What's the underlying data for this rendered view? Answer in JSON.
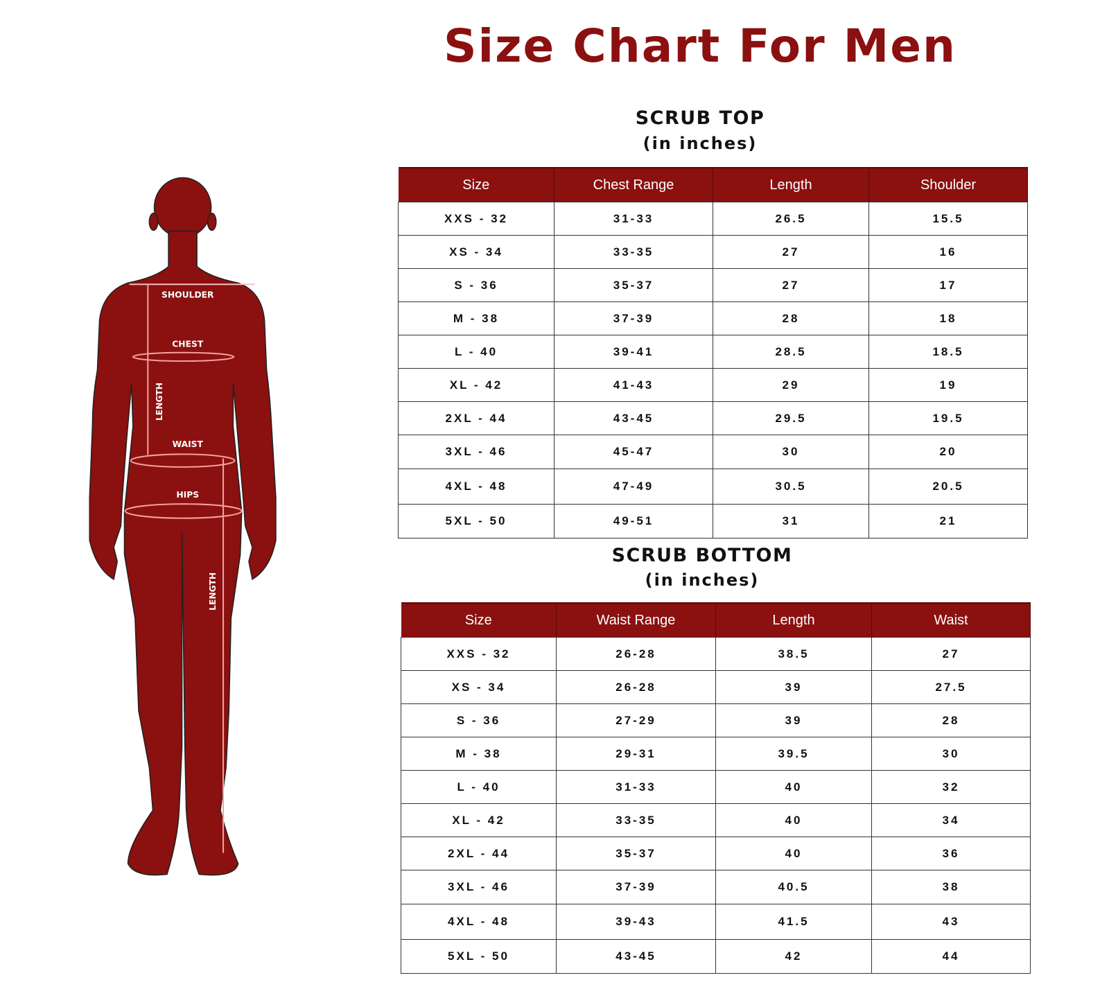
{
  "title": "Size Chart For Men",
  "brand_color": "#8b1010",
  "figure": {
    "labels": {
      "shoulder": "SHOULDER",
      "chest": "CHEST",
      "length_top": "LENGTH",
      "waist": "WAIST",
      "hips": "HIPS",
      "length_bottom": "LENGTH"
    }
  },
  "scrub_top": {
    "heading": "SCRUB TOP",
    "unit": "(in inches)",
    "columns": [
      "Size",
      "Chest Range",
      "Length",
      "Shoulder"
    ],
    "rows": [
      [
        "XXS - 32",
        "31-33",
        "26.5",
        "15.5"
      ],
      [
        "XS - 34",
        "33-35",
        "27",
        "16"
      ],
      [
        "S - 36",
        "35-37",
        "27",
        "17"
      ],
      [
        "M - 38",
        "37-39",
        "28",
        "18"
      ],
      [
        "L - 40",
        "39-41",
        "28.5",
        "18.5"
      ],
      [
        "XL - 42",
        "41-43",
        "29",
        "19"
      ],
      [
        "2XL - 44",
        "43-45",
        "29.5",
        "19.5"
      ],
      [
        "3XL - 46",
        "45-47",
        "30",
        "20"
      ],
      [
        "4XL - 48",
        "47-49",
        "30.5",
        "20.5"
      ],
      [
        "5XL - 50",
        "49-51",
        "31",
        "21"
      ]
    ]
  },
  "scrub_bottom": {
    "heading": "SCRUB BOTTOM",
    "unit": "(in inches)",
    "columns": [
      "Size",
      "Waist Range",
      "Length",
      "Waist"
    ],
    "rows": [
      [
        "XXS - 32",
        "26-28",
        "38.5",
        "27"
      ],
      [
        "XS - 34",
        "26-28",
        "39",
        "27.5"
      ],
      [
        "S - 36",
        "27-29",
        "39",
        "28"
      ],
      [
        "M - 38",
        "29-31",
        "39.5",
        "30"
      ],
      [
        "L - 40",
        "31-33",
        "40",
        "32"
      ],
      [
        "XL - 42",
        "33-35",
        "40",
        "34"
      ],
      [
        "2XL - 44",
        "35-37",
        "40",
        "36"
      ],
      [
        "3XL - 46",
        "37-39",
        "40.5",
        "38"
      ],
      [
        "4XL - 48",
        "39-43",
        "41.5",
        "43"
      ],
      [
        "5XL - 50",
        "43-45",
        "42",
        "44"
      ]
    ]
  }
}
